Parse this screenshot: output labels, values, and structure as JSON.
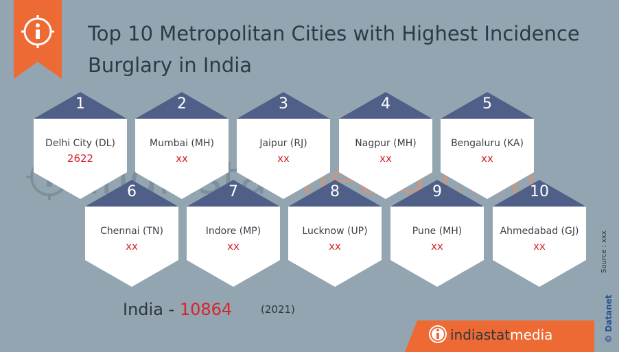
{
  "header": {
    "title_line1": "Top 10 Metropolitan Cities with Highest Incidence",
    "title_line2": "Burglary in India"
  },
  "watermark": {
    "part1": "indiastat",
    "part2": "media.com"
  },
  "cities": [
    {
      "rank": "1",
      "name": "Delhi City (DL)",
      "value": "2622"
    },
    {
      "rank": "2",
      "name": "Mumbai (MH)",
      "value": "xx"
    },
    {
      "rank": "3",
      "name": "Jaipur (RJ)",
      "value": "xx"
    },
    {
      "rank": "4",
      "name": "Nagpur (MH)",
      "value": "xx"
    },
    {
      "rank": "5",
      "name": "Bengaluru (KA)",
      "value": "xx"
    },
    {
      "rank": "6",
      "name": "Chennai (TN)",
      "value": "xx"
    },
    {
      "rank": "7",
      "name": "Indore (MP)",
      "value": "xx"
    },
    {
      "rank": "8",
      "name": "Lucknow (UP)",
      "value": "xx"
    },
    {
      "rank": "9",
      "name": "Pune (MH)",
      "value": "xx"
    },
    {
      "rank": "10",
      "name": "Ahmedabad (GJ)",
      "value": "xx"
    }
  ],
  "total": {
    "label": "India - ",
    "value": "10864",
    "year": "(2021)"
  },
  "footer": {
    "brand1": "indiastat",
    "brand2": "media"
  },
  "side": {
    "source": "Source : xxx",
    "credit": "© Datanet"
  },
  "colors": {
    "background": "#93a5b0",
    "accent": "#ee6a35",
    "hex_tab": "#4f5f87",
    "value": "#d8242c"
  },
  "icons": [
    "info-icon"
  ]
}
